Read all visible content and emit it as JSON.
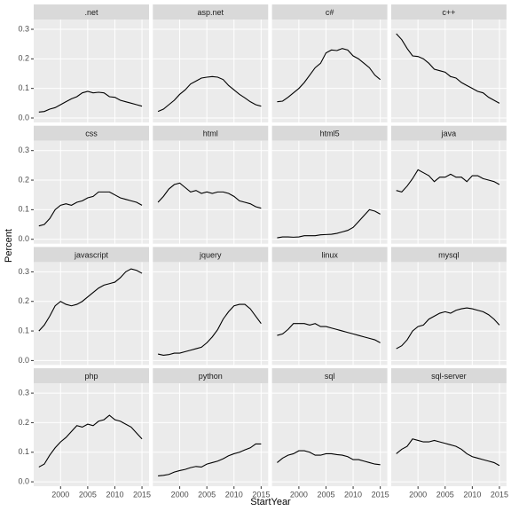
{
  "chart_data": {
    "type": "line",
    "xlabel": "StartYear",
    "ylabel": "Percent",
    "xlim": [
      1995.05,
      2016.3
    ],
    "ylim": [
      -0.015,
      0.333
    ],
    "xticks": [
      2000,
      2005,
      2010,
      2015
    ],
    "yticks": [
      {
        "value": 0,
        "label": "0.0"
      },
      0.1,
      0.2,
      0.3
    ],
    "grid": true,
    "color": "#000000",
    "x": [
      1996,
      1997,
      1998,
      1999,
      2000,
      2001,
      2002,
      2003,
      2004,
      2005,
      2006,
      2007,
      2008,
      2009,
      2010,
      2011,
      2012,
      2013,
      2014,
      2015
    ],
    "panels": [
      {
        "title": ".net",
        "values": [
          0.02,
          0.022,
          0.03,
          0.035,
          0.045,
          0.055,
          0.065,
          0.072,
          0.085,
          0.09,
          0.085,
          0.087,
          0.085,
          0.072,
          0.07,
          0.06,
          0.055,
          0.05,
          0.045,
          0.04
        ]
      },
      {
        "title": "asp.net",
        "values": [
          0.022,
          0.03,
          0.045,
          0.06,
          0.08,
          0.095,
          0.115,
          0.125,
          0.135,
          0.138,
          0.14,
          0.138,
          0.13,
          0.11,
          0.095,
          0.08,
          0.068,
          0.055,
          0.045,
          0.04
        ]
      },
      {
        "title": "c#",
        "values": [
          0.055,
          0.057,
          0.07,
          0.085,
          0.1,
          0.12,
          0.145,
          0.17,
          0.185,
          0.22,
          0.23,
          0.228,
          0.235,
          0.23,
          0.21,
          0.2,
          0.185,
          0.17,
          0.145,
          0.13
        ]
      },
      {
        "title": "c++",
        "values": [
          0.285,
          0.265,
          0.235,
          0.21,
          0.208,
          0.2,
          0.185,
          0.165,
          0.16,
          0.155,
          0.14,
          0.135,
          0.12,
          0.11,
          0.1,
          0.09,
          0.085,
          0.07,
          0.06,
          0.05
        ]
      },
      {
        "title": "css",
        "values": [
          0.045,
          0.05,
          0.07,
          0.1,
          0.115,
          0.12,
          0.115,
          0.125,
          0.13,
          0.14,
          0.145,
          0.16,
          0.16,
          0.16,
          0.15,
          0.14,
          0.135,
          0.13,
          0.125,
          0.115
        ]
      },
      {
        "title": "html",
        "values": [
          0.125,
          0.145,
          0.17,
          0.185,
          0.19,
          0.175,
          0.16,
          0.165,
          0.155,
          0.16,
          0.155,
          0.16,
          0.16,
          0.155,
          0.145,
          0.13,
          0.125,
          0.12,
          0.11,
          0.105
        ]
      },
      {
        "title": "html5",
        "values": [
          0.005,
          0.008,
          0.008,
          0.007,
          0.008,
          0.012,
          0.012,
          0.012,
          0.015,
          0.016,
          0.017,
          0.02,
          0.025,
          0.03,
          0.04,
          0.06,
          0.08,
          0.1,
          0.095,
          0.085
        ]
      },
      {
        "title": "java",
        "values": [
          0.165,
          0.16,
          0.18,
          0.205,
          0.235,
          0.225,
          0.215,
          0.195,
          0.21,
          0.21,
          0.22,
          0.21,
          0.21,
          0.195,
          0.215,
          0.215,
          0.205,
          0.2,
          0.195,
          0.185
        ]
      },
      {
        "title": "javascript",
        "values": [
          0.1,
          0.12,
          0.15,
          0.185,
          0.2,
          0.19,
          0.185,
          0.19,
          0.2,
          0.215,
          0.23,
          0.245,
          0.255,
          0.26,
          0.265,
          0.28,
          0.3,
          0.31,
          0.305,
          0.295
        ]
      },
      {
        "title": "jquery",
        "values": [
          0.022,
          0.018,
          0.02,
          0.025,
          0.025,
          0.03,
          0.035,
          0.04,
          0.045,
          0.06,
          0.08,
          0.105,
          0.14,
          0.165,
          0.185,
          0.19,
          0.19,
          0.175,
          0.15,
          0.125
        ]
      },
      {
        "title": "linux",
        "values": [
          0.085,
          0.09,
          0.105,
          0.125,
          0.125,
          0.125,
          0.12,
          0.125,
          0.115,
          0.115,
          0.11,
          0.105,
          0.1,
          0.095,
          0.09,
          0.085,
          0.08,
          0.075,
          0.07,
          0.06
        ]
      },
      {
        "title": "mysql",
        "values": [
          0.04,
          0.05,
          0.07,
          0.1,
          0.115,
          0.12,
          0.14,
          0.15,
          0.16,
          0.165,
          0.16,
          0.17,
          0.175,
          0.178,
          0.175,
          0.17,
          0.165,
          0.155,
          0.14,
          0.12
        ]
      },
      {
        "title": "php",
        "values": [
          0.05,
          0.06,
          0.09,
          0.115,
          0.135,
          0.15,
          0.17,
          0.19,
          0.185,
          0.195,
          0.19,
          0.205,
          0.21,
          0.225,
          0.21,
          0.205,
          0.195,
          0.185,
          0.165,
          0.145
        ]
      },
      {
        "title": "python",
        "values": [
          0.02,
          0.022,
          0.025,
          0.033,
          0.038,
          0.042,
          0.048,
          0.052,
          0.05,
          0.06,
          0.065,
          0.07,
          0.078,
          0.088,
          0.095,
          0.1,
          0.108,
          0.115,
          0.128,
          0.128
        ]
      },
      {
        "title": "sql",
        "values": [
          0.065,
          0.08,
          0.09,
          0.095,
          0.105,
          0.105,
          0.1,
          0.09,
          0.09,
          0.095,
          0.095,
          0.092,
          0.09,
          0.085,
          0.075,
          0.075,
          0.07,
          0.065,
          0.06,
          0.058
        ]
      },
      {
        "title": "sql-server",
        "values": [
          0.095,
          0.11,
          0.12,
          0.145,
          0.14,
          0.135,
          0.135,
          0.14,
          0.135,
          0.13,
          0.125,
          0.12,
          0.11,
          0.095,
          0.085,
          0.08,
          0.075,
          0.07,
          0.065,
          0.055
        ]
      }
    ]
  }
}
